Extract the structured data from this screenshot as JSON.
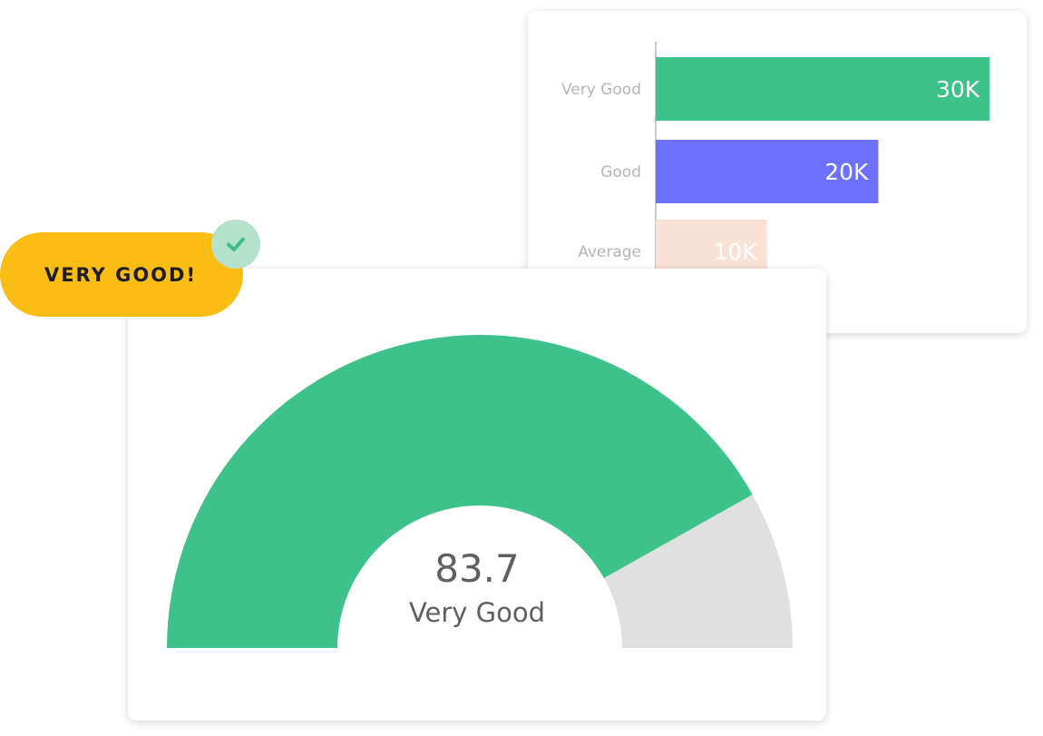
{
  "badge": {
    "label": "VERY GOOD!",
    "color": "#fbbd13"
  },
  "check_badge": {
    "icon": "check-icon",
    "background": "#b5e2cd",
    "color": "#3dbf8a"
  },
  "chart_data": [
    {
      "type": "bar",
      "orientation": "horizontal",
      "categories": [
        "Very Good",
        "Good",
        "Average"
      ],
      "values": [
        30000,
        20000,
        10000
      ],
      "value_labels": [
        "30K",
        "20K",
        "10K"
      ],
      "colors": [
        "#3dc28c",
        "#6c72ff",
        "#f9e1d5"
      ],
      "xlim": [
        0,
        33000
      ],
      "grid": false,
      "title": "",
      "xlabel": "",
      "ylabel": ""
    },
    {
      "type": "gauge",
      "value": 83.7,
      "value_label": "83.7",
      "rating": "Very Good",
      "range": [
        0,
        100
      ],
      "colors": {
        "fill": "#3dc28c",
        "track": "#e0e0e0"
      }
    }
  ]
}
